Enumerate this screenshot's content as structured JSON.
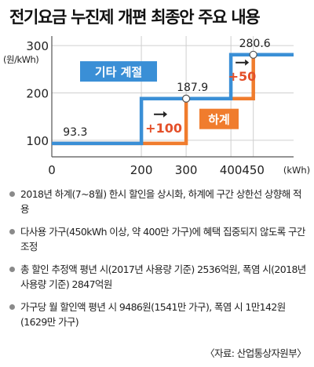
{
  "title": "전기요금 누진제 개편 최종안 주요 내용",
  "chart_data": {
    "type": "line",
    "ylabel": "(원/kWh)",
    "xlabel": "(kWh)",
    "x_ticks": [
      0,
      200,
      300,
      400,
      450
    ],
    "y_ticks": [
      100,
      200,
      300
    ],
    "xlim": [
      0,
      540
    ],
    "ylim": [
      65,
      320
    ],
    "grid": true,
    "legend": "inline",
    "series": [
      {
        "name": "기타 계절",
        "color": "#3a8fd6",
        "points": [
          [
            0,
            93.3
          ],
          [
            200,
            93.3
          ],
          [
            200,
            187.9
          ],
          [
            400,
            187.9
          ],
          [
            400,
            280.6
          ],
          [
            540,
            280.6
          ]
        ]
      },
      {
        "name": "하계",
        "color": "#f07c2d",
        "points": [
          [
            0,
            93.3
          ],
          [
            300,
            93.3
          ],
          [
            300,
            187.9
          ],
          [
            450,
            187.9
          ],
          [
            450,
            280.6
          ],
          [
            540,
            280.6
          ]
        ]
      }
    ],
    "value_labels": [
      {
        "text": "93.3",
        "x": 25,
        "y": 93.3
      },
      {
        "text": "187.9",
        "x": 300,
        "y": 187.9
      },
      {
        "text": "280.6",
        "x": 450,
        "y": 280.6
      }
    ],
    "annotations": [
      {
        "text": "+100",
        "color": "#e4502a"
      },
      {
        "text": "+50",
        "color": "#e4502a"
      }
    ]
  },
  "notes": [
    "2018년 하계(7~8월) 한시 할인을 상시화, 하계에 구간 상한선 상향해 적용",
    "다사용 가구(450kWh 이상, 약 400만 가구)에 혜택 집중되지 않도록 구간 조정",
    "총 할인 추정액 평년 시(2017년 사용량 기준) 2536억원, 폭염 시(2018년 사용량 기준) 2847억원",
    "가구당 월 할인액 평년 시 9486원(1541만 가구), 폭염 시 1만142원(1629만 가구)"
  ],
  "source": "〈자료: 산업통상자원부〉"
}
